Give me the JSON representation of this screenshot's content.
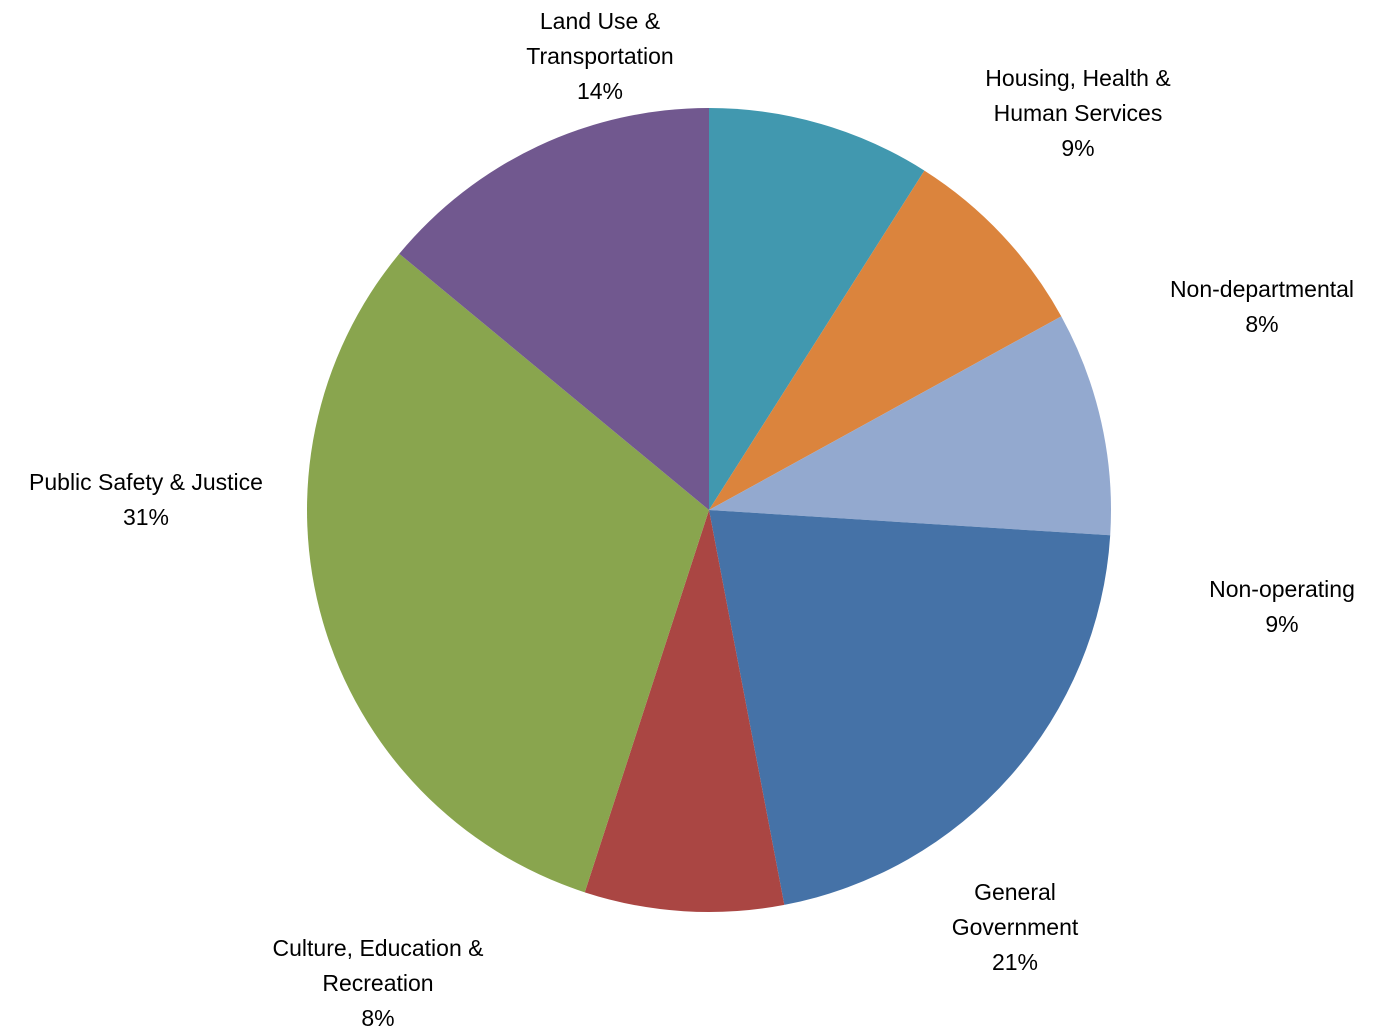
{
  "chart_data": {
    "type": "pie",
    "start_angle_deg": 0,
    "direction": "clockwise",
    "slices": [
      {
        "label_lines": [
          "Housing, Health &",
          "Human Services"
        ],
        "value": 9,
        "display": "9%",
        "color": "#4198AF"
      },
      {
        "label_lines": [
          "Non-departmental"
        ],
        "value": 8,
        "display": "8%",
        "color": "#DB843D"
      },
      {
        "label_lines": [
          "Non-operating"
        ],
        "value": 9,
        "display": "9%",
        "color": "#93A9CF"
      },
      {
        "label_lines": [
          "General",
          "Government"
        ],
        "value": 21,
        "display": "21%",
        "color": "#4572A7"
      },
      {
        "label_lines": [
          "Culture, Education &",
          "Recreation"
        ],
        "value": 8,
        "display": "8%",
        "color": "#AA4643"
      },
      {
        "label_lines": [
          "Public Safety & Justice"
        ],
        "value": 31,
        "display": "31%",
        "color": "#89A54E"
      },
      {
        "label_lines": [
          "Land Use &",
          "Transportation"
        ],
        "value": 14,
        "display": "14%",
        "color": "#71588F"
      }
    ]
  }
}
